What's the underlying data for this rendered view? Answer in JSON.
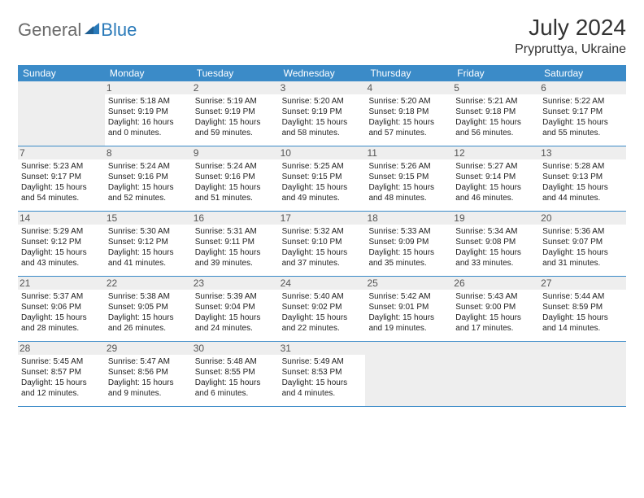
{
  "logo": {
    "general": "General",
    "blue": "Blue"
  },
  "title": "July 2024",
  "location": "Prypruttya, Ukraine",
  "colors": {
    "header_bg": "#3b8bc8",
    "header_text": "#ffffff",
    "daynum_bg": "#eeeeee",
    "border": "#3b8bc8",
    "logo_gray": "#6b6b6b",
    "logo_blue": "#2a7ab9"
  },
  "day_headers": [
    "Sunday",
    "Monday",
    "Tuesday",
    "Wednesday",
    "Thursday",
    "Friday",
    "Saturday"
  ],
  "weeks": [
    [
      {
        "empty": true
      },
      {
        "n": "1",
        "sr": "Sunrise: 5:18 AM",
        "ss": "Sunset: 9:19 PM",
        "dl": "Daylight: 16 hours and 0 minutes."
      },
      {
        "n": "2",
        "sr": "Sunrise: 5:19 AM",
        "ss": "Sunset: 9:19 PM",
        "dl": "Daylight: 15 hours and 59 minutes."
      },
      {
        "n": "3",
        "sr": "Sunrise: 5:20 AM",
        "ss": "Sunset: 9:19 PM",
        "dl": "Daylight: 15 hours and 58 minutes."
      },
      {
        "n": "4",
        "sr": "Sunrise: 5:20 AM",
        "ss": "Sunset: 9:18 PM",
        "dl": "Daylight: 15 hours and 57 minutes."
      },
      {
        "n": "5",
        "sr": "Sunrise: 5:21 AM",
        "ss": "Sunset: 9:18 PM",
        "dl": "Daylight: 15 hours and 56 minutes."
      },
      {
        "n": "6",
        "sr": "Sunrise: 5:22 AM",
        "ss": "Sunset: 9:17 PM",
        "dl": "Daylight: 15 hours and 55 minutes."
      }
    ],
    [
      {
        "n": "7",
        "sr": "Sunrise: 5:23 AM",
        "ss": "Sunset: 9:17 PM",
        "dl": "Daylight: 15 hours and 54 minutes."
      },
      {
        "n": "8",
        "sr": "Sunrise: 5:24 AM",
        "ss": "Sunset: 9:16 PM",
        "dl": "Daylight: 15 hours and 52 minutes."
      },
      {
        "n": "9",
        "sr": "Sunrise: 5:24 AM",
        "ss": "Sunset: 9:16 PM",
        "dl": "Daylight: 15 hours and 51 minutes."
      },
      {
        "n": "10",
        "sr": "Sunrise: 5:25 AM",
        "ss": "Sunset: 9:15 PM",
        "dl": "Daylight: 15 hours and 49 minutes."
      },
      {
        "n": "11",
        "sr": "Sunrise: 5:26 AM",
        "ss": "Sunset: 9:15 PM",
        "dl": "Daylight: 15 hours and 48 minutes."
      },
      {
        "n": "12",
        "sr": "Sunrise: 5:27 AM",
        "ss": "Sunset: 9:14 PM",
        "dl": "Daylight: 15 hours and 46 minutes."
      },
      {
        "n": "13",
        "sr": "Sunrise: 5:28 AM",
        "ss": "Sunset: 9:13 PM",
        "dl": "Daylight: 15 hours and 44 minutes."
      }
    ],
    [
      {
        "n": "14",
        "sr": "Sunrise: 5:29 AM",
        "ss": "Sunset: 9:12 PM",
        "dl": "Daylight: 15 hours and 43 minutes."
      },
      {
        "n": "15",
        "sr": "Sunrise: 5:30 AM",
        "ss": "Sunset: 9:12 PM",
        "dl": "Daylight: 15 hours and 41 minutes."
      },
      {
        "n": "16",
        "sr": "Sunrise: 5:31 AM",
        "ss": "Sunset: 9:11 PM",
        "dl": "Daylight: 15 hours and 39 minutes."
      },
      {
        "n": "17",
        "sr": "Sunrise: 5:32 AM",
        "ss": "Sunset: 9:10 PM",
        "dl": "Daylight: 15 hours and 37 minutes."
      },
      {
        "n": "18",
        "sr": "Sunrise: 5:33 AM",
        "ss": "Sunset: 9:09 PM",
        "dl": "Daylight: 15 hours and 35 minutes."
      },
      {
        "n": "19",
        "sr": "Sunrise: 5:34 AM",
        "ss": "Sunset: 9:08 PM",
        "dl": "Daylight: 15 hours and 33 minutes."
      },
      {
        "n": "20",
        "sr": "Sunrise: 5:36 AM",
        "ss": "Sunset: 9:07 PM",
        "dl": "Daylight: 15 hours and 31 minutes."
      }
    ],
    [
      {
        "n": "21",
        "sr": "Sunrise: 5:37 AM",
        "ss": "Sunset: 9:06 PM",
        "dl": "Daylight: 15 hours and 28 minutes."
      },
      {
        "n": "22",
        "sr": "Sunrise: 5:38 AM",
        "ss": "Sunset: 9:05 PM",
        "dl": "Daylight: 15 hours and 26 minutes."
      },
      {
        "n": "23",
        "sr": "Sunrise: 5:39 AM",
        "ss": "Sunset: 9:04 PM",
        "dl": "Daylight: 15 hours and 24 minutes."
      },
      {
        "n": "24",
        "sr": "Sunrise: 5:40 AM",
        "ss": "Sunset: 9:02 PM",
        "dl": "Daylight: 15 hours and 22 minutes."
      },
      {
        "n": "25",
        "sr": "Sunrise: 5:42 AM",
        "ss": "Sunset: 9:01 PM",
        "dl": "Daylight: 15 hours and 19 minutes."
      },
      {
        "n": "26",
        "sr": "Sunrise: 5:43 AM",
        "ss": "Sunset: 9:00 PM",
        "dl": "Daylight: 15 hours and 17 minutes."
      },
      {
        "n": "27",
        "sr": "Sunrise: 5:44 AM",
        "ss": "Sunset: 8:59 PM",
        "dl": "Daylight: 15 hours and 14 minutes."
      }
    ],
    [
      {
        "n": "28",
        "sr": "Sunrise: 5:45 AM",
        "ss": "Sunset: 8:57 PM",
        "dl": "Daylight: 15 hours and 12 minutes."
      },
      {
        "n": "29",
        "sr": "Sunrise: 5:47 AM",
        "ss": "Sunset: 8:56 PM",
        "dl": "Daylight: 15 hours and 9 minutes."
      },
      {
        "n": "30",
        "sr": "Sunrise: 5:48 AM",
        "ss": "Sunset: 8:55 PM",
        "dl": "Daylight: 15 hours and 6 minutes."
      },
      {
        "n": "31",
        "sr": "Sunrise: 5:49 AM",
        "ss": "Sunset: 8:53 PM",
        "dl": "Daylight: 15 hours and 4 minutes."
      },
      {
        "empty": true
      },
      {
        "empty": true
      },
      {
        "empty": true
      }
    ]
  ]
}
